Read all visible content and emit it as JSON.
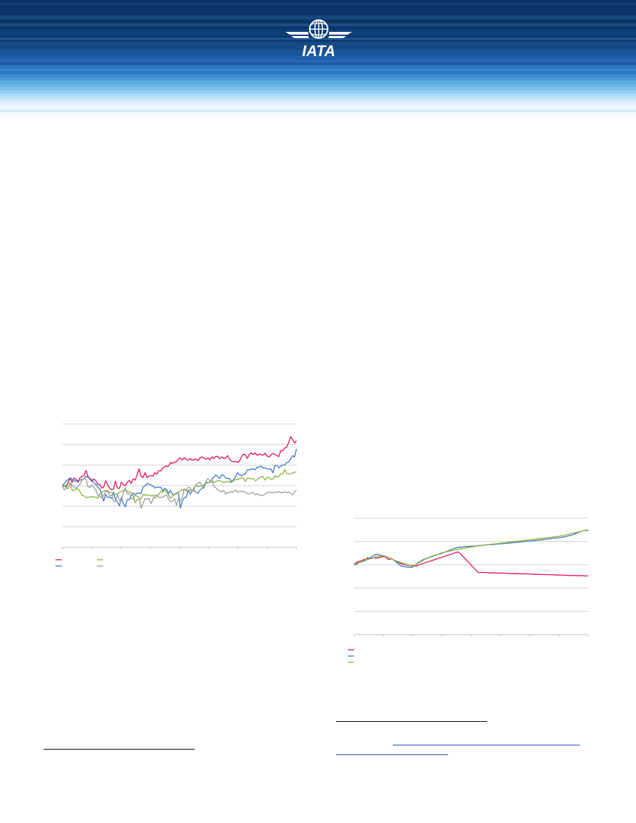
{
  "header": {
    "brand_text": "IATA",
    "colors": {
      "dark_navy": "#0b3566",
      "mid_blue": "#0f4f92",
      "light_blue": "#5eaee2",
      "pale_blue": "#cfe8f8"
    }
  },
  "charts": [
    {
      "id": "chart1",
      "chart_data": {
        "type": "line",
        "title": "",
        "xlabel": "",
        "ylabel": "",
        "x_count": 120,
        "ylim": [
          -50,
          50
        ],
        "gridlines": 6,
        "grid": true,
        "legend_position": "bottom-left",
        "series": [
          {
            "color": "#e0185a",
            "values": [
              0.0,
              -0.3,
              -0.7,
              3.1,
              6.0,
              2.5,
              6.1,
              5.0,
              2.6,
              6.6,
              7.6,
              8.2,
              12.3,
              7.7,
              5.4,
              3.4,
              5.4,
              4.0,
              1.1,
              1.2,
              -2.0,
              -1.3,
              4.0,
              0.6,
              -2.0,
              -3.3,
              -2.8,
              3.6,
              -2.0,
              -2.2,
              2.7,
              0.7,
              0.1,
              2.7,
              4.2,
              1.7,
              5.4,
              4.5,
              9.0,
              13.6,
              7.4,
              6.6,
              10.5,
              6.5,
              7.8,
              8.2,
              7.8,
              10.4,
              9.3,
              12.2,
              11.9,
              14.3,
              15.4,
              15.9,
              15.8,
              18.7,
              17.9,
              19.1,
              19.3,
              21.6,
              22.5,
              20.8,
              22.7,
              21.1,
              20.7,
              22.0,
              20.6,
              21.2,
              21.5,
              20.3,
              22.6,
              23.2,
              22.4,
              21.3,
              22.5,
              20.9,
              23.4,
              21.8,
              23.8,
              23.6,
              21.8,
              23.3,
              22.2,
              22.2,
              24.3,
              21.4,
              19.9,
              19.3,
              19.6,
              18.8,
              19.9,
              23.1,
              25.5,
              24.8,
              22.1,
              25.2,
              26.6,
              25.1,
              26.6,
              24.5,
              25.7,
              25.2,
              24.6,
              26.3,
              24.0,
              23.2,
              24.8,
              26.1,
              25.2,
              24.5,
              23.5,
              28.3,
              28.4,
              30.4,
              31.4,
              34.7,
              39.7,
              37.4,
              34.6,
              36.3
            ]
          },
          {
            "color": "#3e7cc8",
            "values": [
              0.0,
              1.7,
              3.8,
              5.0,
              6.3,
              5.1,
              3.9,
              3.6,
              4.2,
              4.4,
              5.1,
              5.7,
              7.7,
              6.8,
              6.1,
              4.8,
              2.4,
              1.0,
              -1.1,
              -2.7,
              -6.9,
              -12.6,
              -7.1,
              -9.6,
              -9.2,
              -10.4,
              -5.3,
              -11.3,
              -13.3,
              -16.4,
              -9.5,
              -14.7,
              -17.2,
              -11.2,
              -11.5,
              -8.4,
              -6.1,
              -7.2,
              -6.1,
              -6.2,
              -6.4,
              -1.2,
              -0.5,
              1.6,
              1.2,
              0.6,
              -0.3,
              -1.9,
              -1.3,
              -1.3,
              -1.3,
              -4.2,
              -2.1,
              -3.2,
              -6.6,
              -3.8,
              -7.2,
              -7.3,
              -6.0,
              -6.1,
              -18.3,
              -12.1,
              -9.7,
              -9.4,
              -3.6,
              -6.7,
              -4.5,
              -3.7,
              -5.7,
              -6.2,
              -3.5,
              -2.3,
              -0.4,
              3.1,
              2.3,
              2.6,
              5.6,
              6.7,
              8.6,
              7.2,
              5.9,
              8.9,
              8.1,
              6.3,
              5.8,
              5.9,
              2.5,
              5.0,
              7.2,
              10.5,
              8.9,
              7.9,
              8.7,
              9.6,
              12.8,
              12.6,
              13.5,
              13.4,
              12.9,
              15.0,
              14.8,
              15.9,
              14.2,
              14.4,
              13.6,
              13.4,
              13.5,
              10.4,
              16.1,
              16.6,
              14.6,
              15.8,
              16.9,
              16.6,
              18.7,
              19.0,
              21.8,
              24.3,
              23.2,
              29.9
            ]
          },
          {
            "color": "#8db43c",
            "values": [
              0.0,
              0.4,
              -2.1,
              2.1,
              1.7,
              -3.6,
              -4.0,
              -2.5,
              -2.8,
              -4.8,
              -8.1,
              -8.1,
              -9.6,
              -9.3,
              -9.5,
              -8.8,
              -9.3,
              -9.2,
              -10.1,
              -6.9,
              -5.5,
              -4.5,
              -3.8,
              -3.9,
              -5.7,
              -5.7,
              -6.5,
              -6.9,
              -6.4,
              -5.3,
              -4.8,
              -4.0,
              -3.8,
              -4.2,
              -5.1,
              -5.6,
              -8.5,
              -13.8,
              -11.3,
              -11.2,
              -10.6,
              -7.3,
              -7.5,
              -8.0,
              -7.6,
              -8.3,
              -7.9,
              -10.1,
              -8.8,
              -7.2,
              -4.6,
              -5.4,
              -3.4,
              -5.4,
              -7.6,
              -10.3,
              -8.5,
              -6.9,
              -6.6,
              -5.1,
              -4.1,
              -3.3,
              -3.0,
              -4.5,
              -4.2,
              -3.5,
              -4.5,
              -1.5,
              0.1,
              -0.9,
              -0.4,
              -0.1,
              0.8,
              1.5,
              2.4,
              2.5,
              3.1,
              3.0,
              2.9,
              4.2,
              3.8,
              3.5,
              2.6,
              2.8,
              3.6,
              2.6,
              3.8,
              4.0,
              5.0,
              4.8,
              5.6,
              6.4,
              5.9,
              3.5,
              6.2,
              6.1,
              5.5,
              5.8,
              4.0,
              4.8,
              6.2,
              7.2,
              7.3,
              4.5,
              6.6,
              6.8,
              5.1,
              5.2,
              8.1,
              6.9,
              7.2,
              9.7,
              9.6,
              13.1,
              10.1,
              9.5,
              9.6,
              10.1,
              10.9,
              11.1
            ]
          },
          {
            "color": "#a0a0a0",
            "values": [
              0.0,
              -3.5,
              -2.0,
              -2.5,
              2.4,
              0.3,
              -1.2,
              -2.1,
              -0.3,
              1.2,
              4.4,
              5.8,
              5.5,
              -0.6,
              -1.7,
              0.6,
              -1.4,
              -3.7,
              -7.6,
              -8.5,
              -9.7,
              -7.8,
              -4.8,
              -4.5,
              -8.2,
              -7.6,
              -12.6,
              -13.0,
              -6.8,
              -12.1,
              -12.1,
              -5.5,
              -1.8,
              -6.8,
              -6.4,
              -10.3,
              -10.9,
              -7.5,
              -8.6,
              -9.3,
              -18.6,
              -14.5,
              -10.6,
              -10.9,
              -10.2,
              -14.7,
              -11.1,
              -7.6,
              -7.7,
              -9.6,
              -9.4,
              -9.4,
              -8.3,
              -7.4,
              -10.7,
              -13.0,
              -12.8,
              -10.5,
              -16.0,
              -10.1,
              -12.3,
              -9.3,
              -2.5,
              -3.7,
              -1.3,
              -1.8,
              -4.9,
              -3.0,
              1.2,
              1.6,
              2.9,
              -0.4,
              -2.2,
              3.6,
              5.8,
              3.3,
              5.1,
              -0.6,
              -1.7,
              -3.9,
              -4.2,
              -5.1,
              -3.8,
              -6.8,
              -5.7,
              -5.5,
              -4.9,
              -5.3,
              -3.4,
              -5.3,
              -4.9,
              -4.8,
              -4.7,
              -5.4,
              -6.4,
              -6.8,
              -6.0,
              -5.7,
              -7.4,
              -6.7,
              -7.5,
              -8.0,
              -7.9,
              -6.7,
              -5.8,
              -5.2,
              -5.3,
              -6.1,
              -5.0,
              -5.7,
              -4.9,
              -5.8,
              -5.8,
              -4.9,
              -5.8,
              -5.1,
              -6.3,
              -7.4,
              -4.9,
              -3.7
            ]
          }
        ]
      }
    },
    {
      "id": "chart2",
      "chart_data": {
        "type": "line",
        "title": "",
        "xlabel": "",
        "ylabel": "",
        "x_count": 120,
        "ylim": [
          -30,
          20
        ],
        "gridlines": 5,
        "grid": true,
        "legend_position": "bottom-left",
        "series": [
          {
            "color": "#e0185a",
            "values": [
              0.0,
              0.9,
              1.3,
              1.5,
              1.8,
              2.2,
              2.3,
              3.0,
              2.7,
              2.6,
              3.1,
              2.9,
              2.9,
              3.1,
              3.4,
              3.5,
              3.3,
              2.5,
              2.2,
              2.6,
              2.2,
              1.6,
              1.3,
              0.8,
              0.5,
              0.2,
              -0.0,
              -0.2,
              -0.4,
              -0.6,
              -0.3,
              -0.6,
              -0.4,
              -0.1,
              0.2,
              0.5,
              0.8,
              1.1,
              1.4,
              1.6,
              1.9,
              2.2,
              2.5,
              2.7,
              3.0,
              3.3,
              3.6,
              3.9,
              4.2,
              4.4,
              4.7,
              5.0,
              5.3,
              5.5,
              4.8,
              3.9,
              3.0,
              2.1,
              1.2,
              0.3,
              -0.6,
              -1.5,
              -2.4,
              -3.3,
              -3.3,
              -3.3,
              -3.4,
              -3.4,
              -3.4,
              -3.5,
              -3.5,
              -3.5,
              -3.5,
              -3.6,
              -3.6,
              -3.6,
              -3.6,
              -3.7,
              -3.7,
              -3.7,
              -3.8,
              -3.8,
              -3.8,
              -3.8,
              -3.9,
              -3.9,
              -3.9,
              -3.9,
              -4.0,
              -4.0,
              -4.0,
              -4.1,
              -4.1,
              -4.1,
              -4.1,
              -4.2,
              -4.2,
              -4.2,
              -4.3,
              -4.3,
              -4.3,
              -4.3,
              -4.4,
              -4.4,
              -4.4,
              -4.4,
              -4.5,
              -4.5,
              -4.5,
              -4.6,
              -4.6,
              -4.6,
              -4.6,
              -4.7,
              -4.7,
              -4.7,
              -4.7,
              -4.8,
              -4.8,
              -4.8
            ]
          },
          {
            "color": "#3e7cc8",
            "values": [
              0.0,
              0.1,
              0.6,
              1.1,
              1.3,
              1.6,
              1.9,
              2.5,
              2.9,
              3.5,
              4.0,
              4.3,
              4.5,
              4.2,
              4.0,
              3.8,
              3.5,
              3.2,
              2.9,
              2.5,
              2.1,
              1.5,
              0.8,
              0.1,
              -0.5,
              -0.7,
              -0.9,
              -1.0,
              -1.1,
              -1.2,
              -0.9,
              -0.2,
              0.5,
              1.1,
              1.6,
              2.1,
              2.5,
              2.8,
              3.1,
              3.4,
              3.7,
              4.0,
              4.2,
              4.5,
              4.7,
              5.0,
              5.4,
              5.7,
              6.0,
              6.4,
              6.7,
              7.0,
              7.3,
              7.5,
              7.5,
              7.6,
              7.8,
              7.8,
              7.9,
              7.9,
              8.0,
              8.0,
              8.1,
              8.2,
              8.3,
              8.3,
              8.4,
              8.5,
              8.6,
              8.6,
              8.7,
              8.7,
              8.8,
              8.9,
              9.0,
              9.0,
              9.1,
              9.2,
              9.3,
              9.3,
              9.4,
              9.5,
              9.5,
              9.6,
              9.7,
              9.8,
              9.9,
              10.0,
              10.1,
              10.1,
              10.2,
              10.3,
              10.4,
              10.5,
              10.6,
              10.7,
              10.8,
              10.9,
              11.0,
              11.1,
              11.2,
              11.3,
              11.4,
              11.5,
              11.6,
              11.7,
              11.9,
              12.0,
              12.2,
              12.4,
              12.6,
              12.9,
              13.2,
              13.5,
              13.9,
              14.2,
              14.5,
              14.7,
              14.8,
              14.6
            ]
          },
          {
            "color": "#8db43c",
            "values": [
              0.0,
              0.4,
              0.8,
              1.2,
              1.5,
              1.8,
              2.1,
              2.3,
              2.5,
              2.8,
              3.1,
              3.4,
              3.6,
              3.7,
              3.8,
              3.8,
              3.6,
              3.3,
              3.0,
              2.6,
              2.2,
              1.8,
              1.5,
              1.2,
              0.9,
              0.6,
              0.3,
              0.0,
              -0.2,
              -0.5,
              -0.7,
              -0.2,
              0.3,
              0.8,
              1.3,
              1.8,
              2.3,
              2.7,
              3.1,
              3.5,
              3.8,
              4.1,
              4.3,
              4.6,
              4.9,
              5.2,
              5.4,
              5.6,
              5.7,
              5.9,
              6.1,
              6.3,
              6.5,
              6.6,
              6.8,
              6.9,
              7.0,
              7.2,
              7.4,
              7.5,
              7.7,
              7.8,
              8.0,
              8.1,
              8.2,
              8.3,
              8.4,
              8.5,
              8.6,
              8.7,
              8.8,
              8.9,
              9.0,
              9.1,
              9.2,
              9.3,
              9.4,
              9.5,
              9.6,
              9.7,
              9.8,
              9.9,
              10.0,
              10.1,
              10.2,
              10.3,
              10.4,
              10.5,
              10.6,
              10.7,
              10.8,
              10.9,
              11.0,
              11.1,
              11.2,
              11.3,
              11.4,
              11.5,
              11.6,
              11.7,
              11.8,
              11.9,
              12.0,
              12.1,
              12.2,
              12.4,
              12.5,
              12.7,
              12.9,
              13.1,
              13.3,
              13.5,
              13.7,
              13.9,
              14.1,
              14.3,
              14.5,
              14.7,
              14.9,
              15.0
            ]
          }
        ]
      }
    }
  ]
}
